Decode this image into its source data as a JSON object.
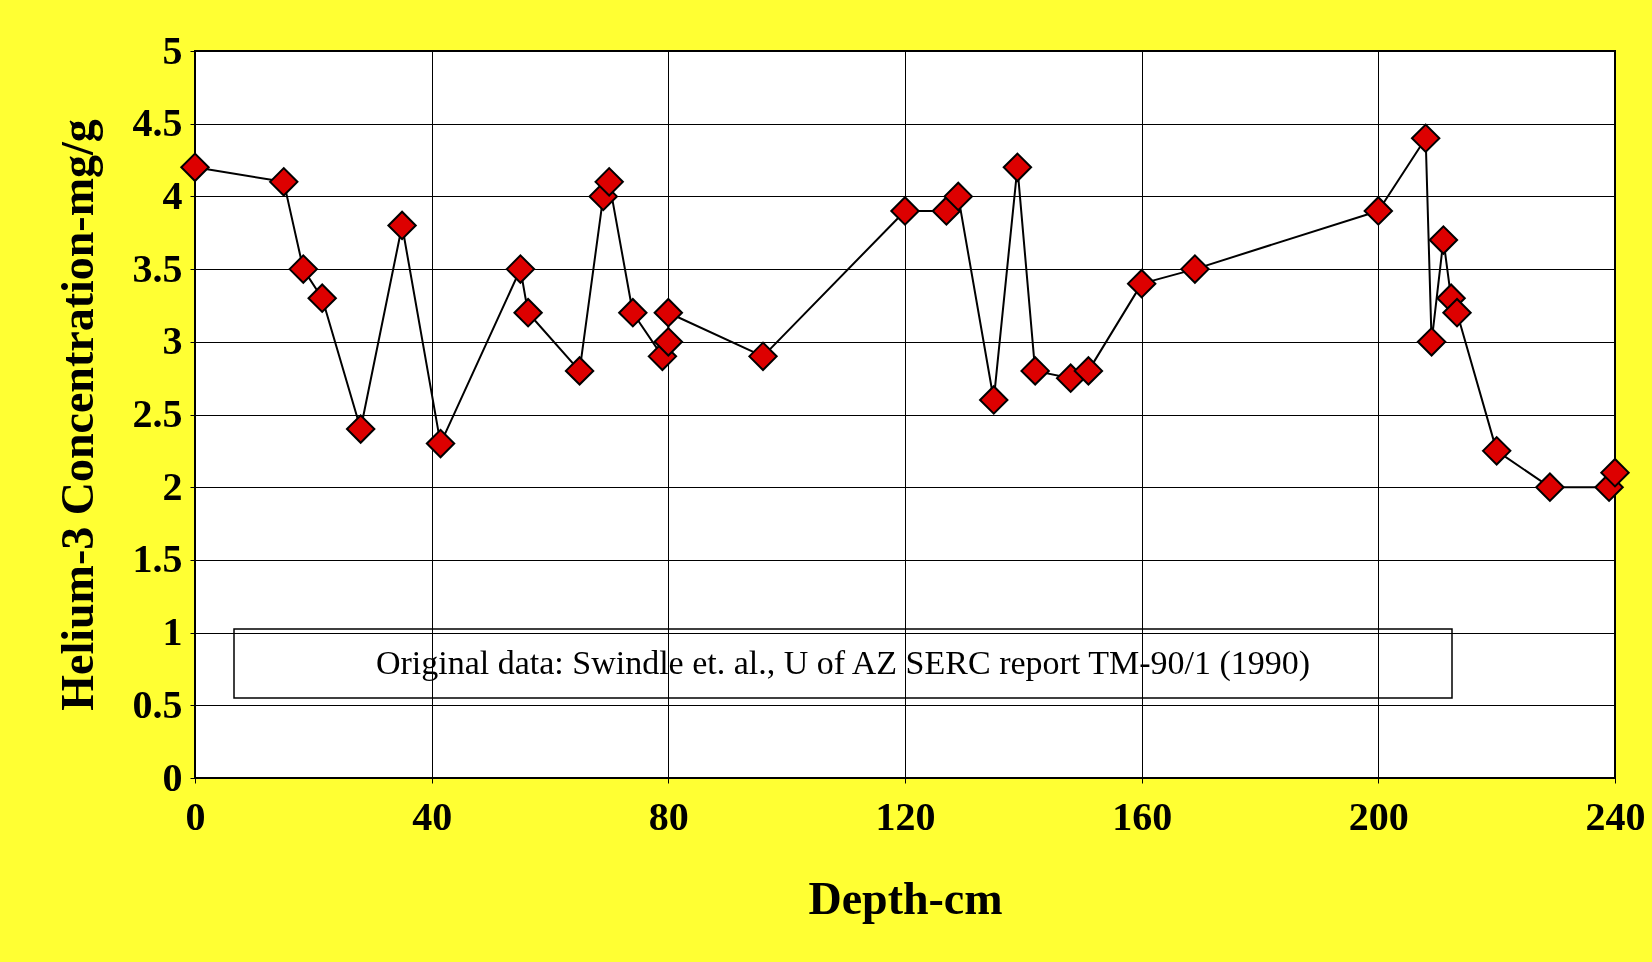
{
  "chart_data": {
    "type": "line",
    "xlabel": "Depth-cm",
    "ylabel": "Helium-3 Concentration-mg/g",
    "x": [
      0,
      15,
      18.3,
      21.5,
      28,
      35,
      41.5,
      55,
      56.3,
      65,
      69,
      70,
      74,
      79,
      80,
      80,
      96,
      120,
      127,
      129,
      135,
      139,
      142,
      148,
      151,
      160,
      169,
      200,
      208,
      209,
      211,
      212.3,
      213.3,
      220,
      229,
      239,
      240
    ],
    "series": [
      {
        "color": "#dd0000",
        "values": [
          4.2,
          4.1,
          3.5,
          3.3,
          2.4,
          3.8,
          2.3,
          3.5,
          3.2,
          2.8,
          4.0,
          4.1,
          3.2,
          2.9,
          3.0,
          3.2,
          2.9,
          3.9,
          3.9,
          4.0,
          2.6,
          4.2,
          2.8,
          2.75,
          2.8,
          3.4,
          3.5,
          3.9,
          4.4,
          3.0,
          3.7,
          3.3,
          3.2,
          2.25,
          2.0,
          2.0,
          2.1
        ]
      }
    ],
    "xlim": [
      0,
      240
    ],
    "xticks": [
      0,
      40,
      80,
      120,
      160,
      200,
      240
    ],
    "ylim": [
      0,
      5
    ],
    "yticks": [
      0,
      0.5,
      1,
      1.5,
      2,
      2.5,
      3,
      3.5,
      4,
      4.5,
      5
    ],
    "grid": true,
    "marker": "diamond",
    "line_style": "solid",
    "annotations": [
      "Original data: Swindle et. al., U of AZ SERC report TM-90/1 (1990)"
    ]
  }
}
